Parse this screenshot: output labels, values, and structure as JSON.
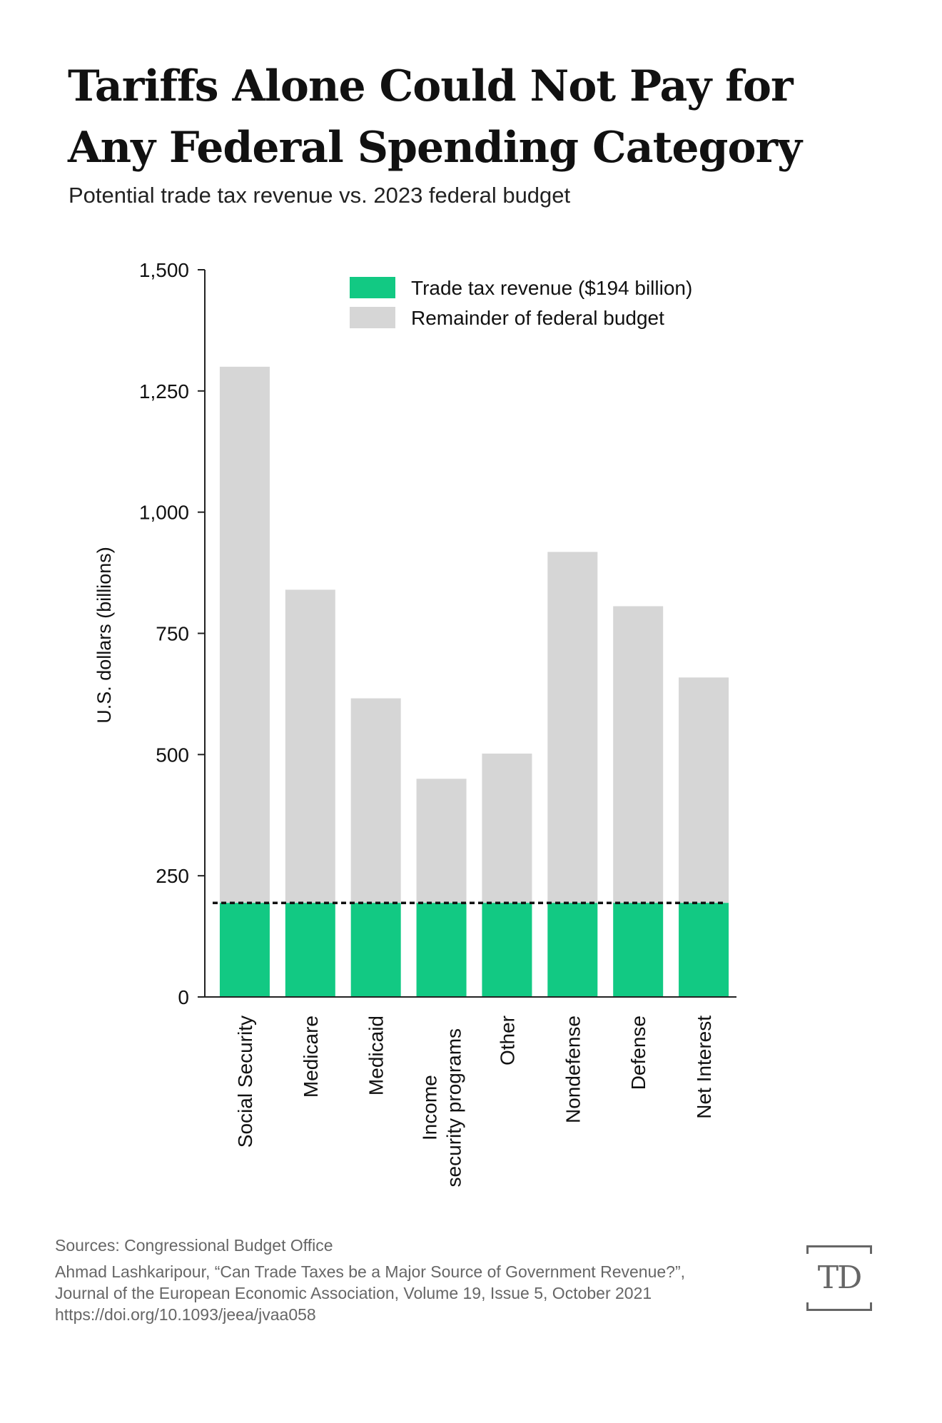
{
  "title": "Tariffs Alone Could Not Pay for Any Federal Spending Category",
  "subtitle": "Potential trade tax revenue vs. 2023 federal budget",
  "chart_data": {
    "type": "bar",
    "stacked": true,
    "ylabel": "U.S. dollars (billions)",
    "xlabel": "",
    "ylim": [
      0,
      1500
    ],
    "yticks": [
      0,
      250,
      500,
      750,
      "1,000",
      "1,250",
      "1,500"
    ],
    "categories": [
      [
        "Social Security"
      ],
      [
        "Medicare"
      ],
      [
        "Medicaid"
      ],
      [
        "Income",
        "security programs"
      ],
      [
        "Other"
      ],
      [
        "Nondefense"
      ],
      [
        "Defense"
      ],
      [
        "Net Interest"
      ]
    ],
    "totals": [
      1300,
      840,
      616,
      450,
      502,
      918,
      806,
      659
    ],
    "series": [
      {
        "name": "Trade tax revenue ($194 billion)",
        "color": "#12c983",
        "values": [
          194,
          194,
          194,
          194,
          194,
          194,
          194,
          194
        ]
      },
      {
        "name": "Remainder of federal budget",
        "color": "#d6d6d6",
        "values": [
          1106,
          646,
          422,
          256,
          308,
          724,
          612,
          465
        ]
      }
    ],
    "reference_line": {
      "value": 194,
      "style": "dashed"
    },
    "grid": false,
    "legend_position": "top-right"
  },
  "sources": {
    "line1": "Sources: Congressional Budget Office",
    "line2": "Ahmad Lashkaripour, “Can Trade Taxes be a Major Source of Government Revenue?”,",
    "line3": "Journal of the European Economic Association, Volume 19, Issue 5, October 2021",
    "line4": "https://doi.org/10.1093/jeea/jvaa058"
  },
  "logo": {
    "text": "TD",
    "icon": "td-logo-icon"
  }
}
